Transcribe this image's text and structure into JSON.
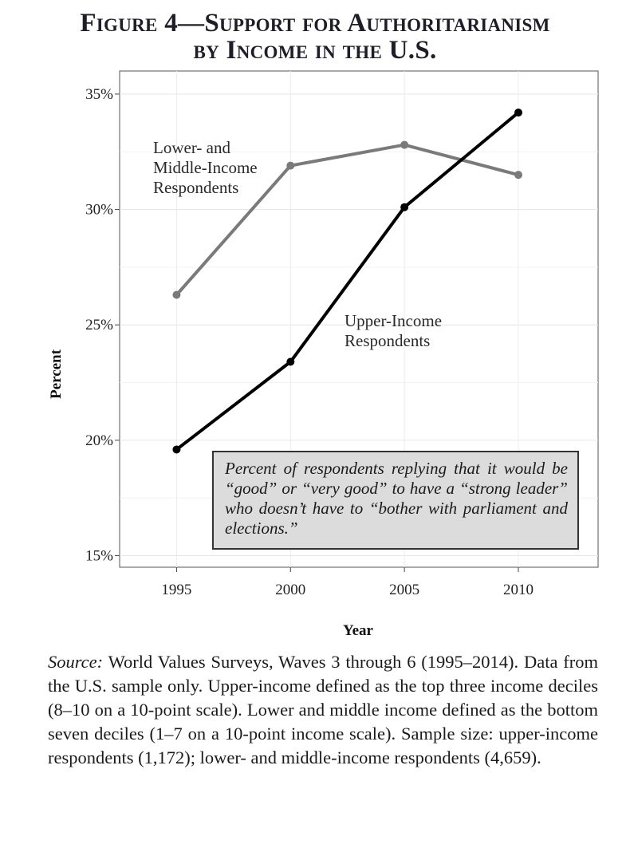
{
  "title": {
    "line1": "Figure 4—Support for Authoritarianism",
    "line2": "by Income in the U.S."
  },
  "chart_data": {
    "type": "line",
    "x": [
      1995,
      2000,
      2005,
      2010
    ],
    "xlabel": "Year",
    "ylabel": "Percent",
    "ylim": [
      14.5,
      36
    ],
    "xlim": [
      1992.5,
      2013.5
    ],
    "yticks": [
      15,
      20,
      25,
      30,
      35
    ],
    "ytick_labels": [
      "15%",
      "20%",
      "25%",
      "30%",
      "35%"
    ],
    "xtick_labels": [
      "1995",
      "2000",
      "2005",
      "2010"
    ],
    "grid": true,
    "series": [
      {
        "name": "Lower- and Middle-Income Respondents",
        "label_lines": [
          "Lower- and",
          "Middle-Income",
          "Respondents"
        ],
        "values": [
          26.3,
          31.9,
          32.8,
          31.5
        ],
        "color": "#7a7a7a"
      },
      {
        "name": "Upper-Income Respondents",
        "label_lines": [
          "Upper-Income",
          "Respondents"
        ],
        "values": [
          19.6,
          23.4,
          30.1,
          34.2
        ],
        "color": "#000000"
      }
    ],
    "annotation": "Percent of respondents replying that it would be “good” or “very good” to have a “strong leader” who doesn’t have to “bother with parliament and elections.”"
  },
  "source": {
    "lead": "Source:",
    "text": "World Values Surveys, Waves 3 through 6 (1995–2014). Data from the U.S. sample only. Upper-income defined as the top three income deciles (8–10 on a 10-point scale). Lower and middle income defined as the bottom seven deciles (1–7 on a 10-point income scale). Sample size: upper-income respondents (1,172); lower- and middle-income respondents (4,659)."
  }
}
